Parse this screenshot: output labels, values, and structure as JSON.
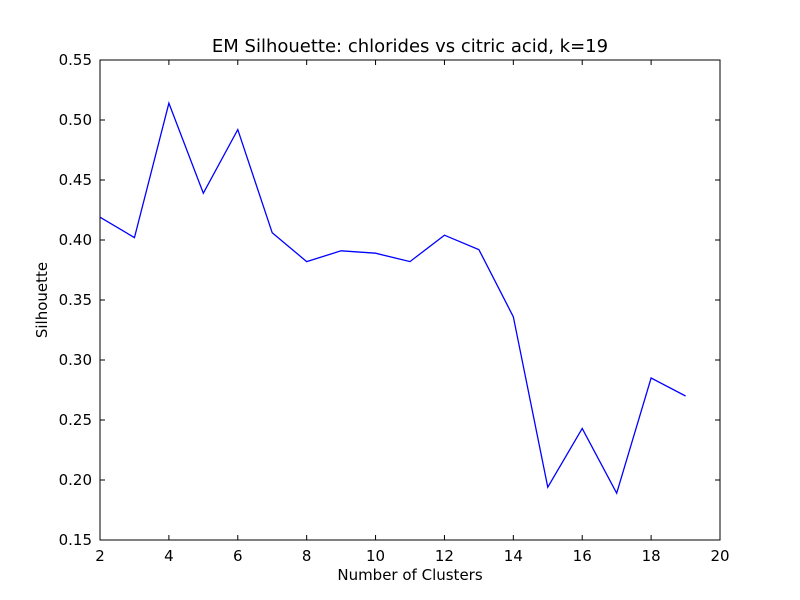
{
  "chart_data": {
    "type": "line",
    "title": "EM Silhouette: chlorides vs citric acid, k=19",
    "xlabel": "Number of Clusters",
    "ylabel": "Silhouette",
    "xlim": [
      2,
      20
    ],
    "ylim": [
      0.15,
      0.55
    ],
    "xticks": [
      "2",
      "4",
      "6",
      "8",
      "10",
      "12",
      "14",
      "16",
      "18",
      "20"
    ],
    "yticks": [
      "0.15",
      "0.20",
      "0.25",
      "0.30",
      "0.35",
      "0.40",
      "0.45",
      "0.50",
      "0.55"
    ],
    "grid": false,
    "series": [
      {
        "color": "#0000ff",
        "x": [
          2,
          3,
          4,
          5,
          6,
          7,
          8,
          9,
          10,
          11,
          12,
          13,
          14,
          15,
          16,
          17,
          18,
          19
        ],
        "y": [
          0.419,
          0.402,
          0.514,
          0.439,
          0.492,
          0.406,
          0.382,
          0.391,
          0.389,
          0.382,
          0.404,
          0.392,
          0.336,
          0.194,
          0.243,
          0.189,
          0.285,
          0.27
        ]
      }
    ]
  }
}
